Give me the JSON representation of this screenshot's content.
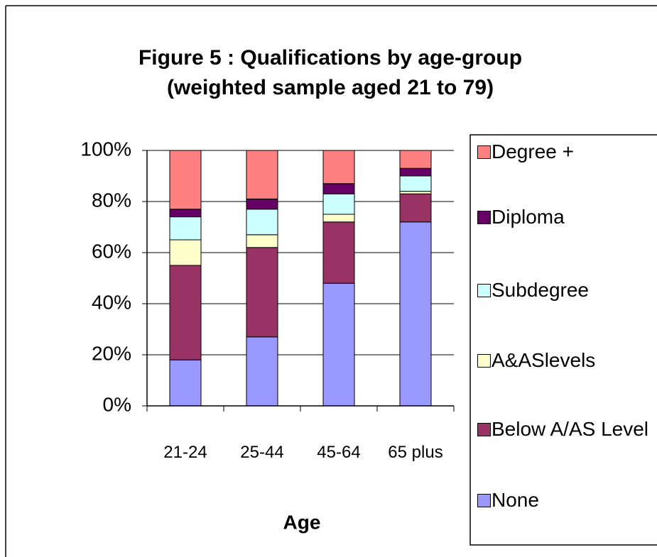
{
  "chart_data": {
    "type": "stacked_bar",
    "title": "Figure 5 : Qualifications by age-group",
    "subtitle": "(weighted sample aged 21 to 79)",
    "x_label": "Age",
    "categories": [
      "21-24",
      "25-44",
      "45-64",
      "65 plus"
    ],
    "series": [
      {
        "name": "None",
        "color": "#9999ff",
        "values": [
          18,
          27,
          48,
          72
        ]
      },
      {
        "name": "Below A/AS Level",
        "color": "#993366",
        "values": [
          37,
          35,
          24,
          11
        ]
      },
      {
        "name": "A&ASlevels",
        "color": "#ffffcc",
        "values": [
          10,
          5,
          3,
          1
        ]
      },
      {
        "name": "Subdegree",
        "color": "#ccffff",
        "values": [
          9,
          10,
          8,
          6
        ]
      },
      {
        "name": "Diploma",
        "color": "#660066",
        "values": [
          3,
          4,
          4,
          3
        ]
      },
      {
        "name": "Degree +",
        "color": "#ff8080",
        "values": [
          23,
          19,
          13,
          7
        ]
      }
    ],
    "ylim": [
      0,
      100
    ],
    "yticks": [
      {
        "value": 0,
        "label": "0%"
      },
      {
        "value": 20,
        "label": "20%"
      },
      {
        "value": 40,
        "label": "40%"
      },
      {
        "value": 60,
        "label": "60%"
      },
      {
        "value": 80,
        "label": "80%"
      },
      {
        "value": 100,
        "label": "100%"
      }
    ],
    "grid": true,
    "legend": "right"
  }
}
